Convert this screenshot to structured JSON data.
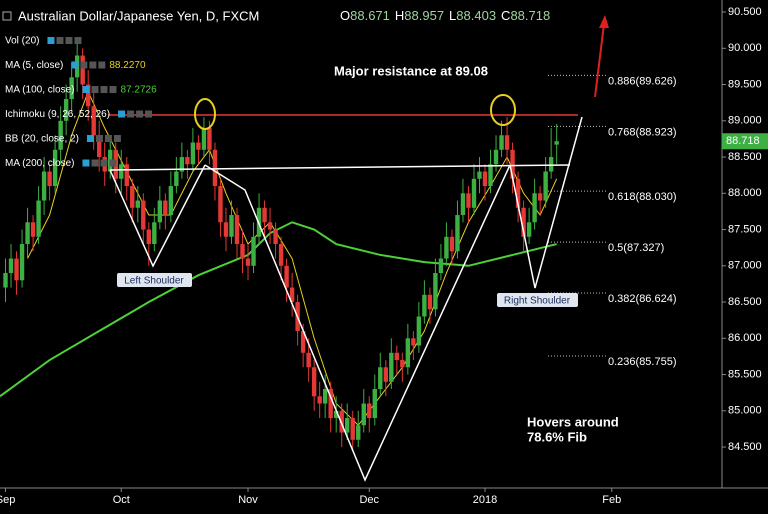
{
  "chart_data": {
    "type": "candlestick",
    "title": "Australian Dollar/Japanese Yen, D, FXCM",
    "ohlc_prefixes": [
      "O",
      "H",
      "L",
      "C"
    ],
    "indicators": [
      {
        "name": "Vol (20)"
      },
      {
        "name": "MA (5, close)",
        "value_label": "88.2270",
        "color": "#e8d21d"
      },
      {
        "name": "MA (100, close)",
        "value_label": "87.2726",
        "color": "#4cd137"
      },
      {
        "name": "Ichimoku (9, 26, 52, 26)"
      },
      {
        "name": "BB (20, close, 2)"
      },
      {
        "name": "MA (200, close)"
      }
    ],
    "series": [
      {
        "name": "AUD/JPY",
        "up_color": "#3cb043",
        "down_color": "#e53935",
        "values": [
          [
            86.7,
            87.1,
            86.5,
            86.9
          ],
          [
            86.9,
            87.3,
            86.7,
            87.1
          ],
          [
            87.1,
            87.2,
            86.6,
            86.8
          ],
          [
            86.8,
            87.5,
            86.7,
            87.3
          ],
          [
            87.3,
            87.8,
            87.1,
            87.6
          ],
          [
            87.6,
            87.7,
            87.2,
            87.4
          ],
          [
            87.4,
            88.1,
            87.3,
            87.9
          ],
          [
            87.9,
            88.5,
            87.7,
            88.3
          ],
          [
            88.3,
            88.4,
            87.9,
            88.1
          ],
          [
            88.1,
            88.8,
            88.0,
            88.6
          ],
          [
            88.6,
            89.2,
            88.4,
            89.0
          ],
          [
            89.0,
            89.5,
            88.8,
            89.3
          ],
          [
            89.3,
            89.8,
            89.1,
            89.6
          ],
          [
            89.6,
            90.1,
            89.4,
            89.9
          ],
          [
            89.9,
            90.0,
            89.3,
            89.5
          ],
          [
            89.5,
            89.7,
            89.0,
            89.2
          ],
          [
            89.2,
            89.4,
            88.6,
            88.8
          ],
          [
            88.8,
            89.0,
            88.3,
            88.5
          ],
          [
            88.5,
            88.7,
            88.1,
            88.3
          ],
          [
            88.3,
            88.8,
            88.2,
            88.6
          ],
          [
            88.6,
            88.7,
            88.0,
            88.2
          ],
          [
            88.2,
            88.6,
            88.0,
            88.4
          ],
          [
            88.4,
            88.5,
            87.9,
            88.1
          ],
          [
            88.1,
            88.2,
            87.6,
            87.8
          ],
          [
            87.8,
            88.1,
            87.6,
            87.9
          ],
          [
            87.9,
            88.0,
            87.3,
            87.5
          ],
          [
            87.5,
            87.6,
            87.0,
            87.3
          ],
          [
            87.3,
            87.8,
            87.2,
            87.6
          ],
          [
            87.6,
            88.1,
            87.5,
            87.9
          ],
          [
            87.9,
            88.0,
            87.5,
            87.7
          ],
          [
            87.7,
            88.3,
            87.6,
            88.1
          ],
          [
            88.1,
            88.5,
            88.0,
            88.3
          ],
          [
            88.3,
            88.7,
            88.2,
            88.5
          ],
          [
            88.5,
            88.6,
            88.2,
            88.4
          ],
          [
            88.4,
            88.9,
            88.3,
            88.7
          ],
          [
            88.7,
            88.8,
            88.4,
            88.6
          ],
          [
            88.6,
            89.05,
            88.5,
            88.9
          ],
          [
            88.9,
            89.0,
            88.4,
            88.6
          ],
          [
            88.6,
            88.7,
            87.9,
            88.1
          ],
          [
            88.1,
            88.2,
            87.4,
            87.6
          ],
          [
            87.6,
            87.8,
            87.2,
            87.4
          ],
          [
            87.4,
            87.9,
            87.3,
            87.7
          ],
          [
            87.7,
            87.8,
            87.1,
            87.3
          ],
          [
            87.3,
            87.5,
            86.9,
            87.1
          ],
          [
            87.1,
            87.3,
            86.8,
            87.0
          ],
          [
            87.0,
            87.6,
            86.9,
            87.4
          ],
          [
            87.4,
            88.0,
            87.3,
            87.8
          ],
          [
            87.8,
            87.9,
            87.4,
            87.6
          ],
          [
            87.6,
            87.8,
            87.3,
            87.5
          ],
          [
            87.5,
            87.6,
            87.1,
            87.3
          ],
          [
            87.3,
            87.4,
            86.8,
            87.0
          ],
          [
            87.0,
            87.1,
            86.5,
            86.7
          ],
          [
            86.7,
            86.9,
            86.3,
            86.5
          ],
          [
            86.5,
            86.6,
            85.9,
            86.1
          ],
          [
            86.1,
            86.2,
            85.6,
            85.8
          ],
          [
            85.8,
            86.0,
            85.4,
            85.6
          ],
          [
            85.6,
            85.7,
            85.0,
            85.2
          ],
          [
            85.2,
            85.4,
            84.9,
            85.1
          ],
          [
            85.1,
            85.5,
            84.9,
            85.3
          ],
          [
            85.3,
            85.4,
            84.7,
            84.9
          ],
          [
            84.9,
            85.2,
            84.7,
            85.0
          ],
          [
            85.0,
            85.1,
            84.5,
            84.7
          ],
          [
            84.7,
            85.1,
            84.6,
            84.9
          ],
          [
            84.9,
            85.0,
            84.45,
            84.6
          ],
          [
            84.6,
            85.0,
            84.5,
            84.8
          ],
          [
            84.8,
            85.3,
            84.7,
            85.1
          ],
          [
            85.1,
            85.2,
            84.7,
            84.9
          ],
          [
            84.9,
            85.5,
            84.8,
            85.3
          ],
          [
            85.3,
            85.8,
            85.2,
            85.6
          ],
          [
            85.6,
            85.7,
            85.2,
            85.4
          ],
          [
            85.4,
            86.0,
            85.3,
            85.8
          ],
          [
            85.8,
            85.9,
            85.5,
            85.7
          ],
          [
            85.7,
            85.8,
            85.4,
            85.6
          ],
          [
            85.6,
            86.2,
            85.5,
            86.0
          ],
          [
            86.0,
            86.1,
            85.7,
            85.9
          ],
          [
            85.9,
            86.5,
            85.8,
            86.3
          ],
          [
            86.3,
            86.8,
            86.2,
            86.6
          ],
          [
            86.6,
            86.7,
            86.2,
            86.4
          ],
          [
            86.4,
            87.1,
            86.3,
            86.9
          ],
          [
            86.9,
            87.3,
            86.8,
            87.1
          ],
          [
            87.1,
            87.6,
            87.0,
            87.4
          ],
          [
            87.4,
            87.5,
            87.0,
            87.2
          ],
          [
            87.2,
            87.9,
            87.1,
            87.7
          ],
          [
            87.7,
            88.2,
            87.6,
            88.0
          ],
          [
            88.0,
            88.1,
            87.6,
            87.8
          ],
          [
            87.8,
            88.4,
            87.7,
            88.2
          ],
          [
            88.2,
            88.5,
            88.0,
            88.3
          ],
          [
            88.3,
            88.4,
            87.9,
            88.1
          ],
          [
            88.1,
            88.6,
            88.0,
            88.4
          ],
          [
            88.4,
            88.8,
            88.3,
            88.6
          ],
          [
            88.6,
            89.0,
            88.5,
            88.8
          ],
          [
            88.8,
            89.05,
            88.4,
            88.6
          ],
          [
            88.6,
            88.7,
            88.0,
            88.2
          ],
          [
            88.2,
            88.3,
            87.6,
            87.8
          ],
          [
            87.8,
            87.9,
            87.2,
            87.4
          ],
          [
            87.4,
            87.8,
            87.3,
            87.6
          ],
          [
            87.6,
            88.2,
            87.5,
            88.0
          ],
          [
            88.0,
            88.1,
            87.7,
            87.9
          ],
          [
            87.9,
            88.5,
            87.8,
            88.3
          ],
          [
            88.3,
            88.9,
            88.2,
            88.5
          ],
          [
            88.671,
            88.957,
            88.403,
            88.718
          ]
        ]
      }
    ],
    "ma_lines": [
      {
        "name": "MA (100, close)",
        "color": "#4cd137",
        "x": [
          -1,
          8,
          17,
          26,
          35,
          44,
          48,
          52,
          56,
          60,
          68,
          76,
          84,
          92,
          100
        ],
        "values": [
          85.2,
          85.7,
          86.1,
          86.5,
          86.87,
          87.15,
          87.45,
          87.6,
          87.5,
          87.3,
          87.15,
          87.05,
          87.0,
          87.15,
          87.3
        ]
      },
      {
        "name": "MA (5, close)",
        "color": "#e8d21d",
        "x": [
          4,
          8,
          12,
          15,
          18,
          22,
          26,
          30,
          34,
          37,
          40,
          44,
          48,
          52,
          56,
          60,
          64,
          68,
          72,
          76,
          80,
          84,
          88,
          91,
          94,
          97,
          100
        ],
        "values": [
          87.1,
          87.7,
          88.8,
          89.4,
          88.9,
          88.3,
          87.7,
          87.7,
          88.3,
          88.6,
          88.0,
          87.3,
          87.6,
          87.1,
          86.0,
          85.1,
          84.8,
          85.2,
          85.6,
          86.1,
          86.9,
          87.6,
          88.1,
          88.5,
          88.0,
          87.7,
          88.2
        ]
      }
    ],
    "xlim": [
      -1,
      130
    ],
    "xticks": [
      {
        "value": 0,
        "label": "Sep"
      },
      {
        "value": 21,
        "label": "Oct"
      },
      {
        "value": 44,
        "label": "Nov"
      },
      {
        "value": 66,
        "label": "Dec"
      },
      {
        "value": 87,
        "label": "2018"
      },
      {
        "value": 110,
        "label": "Feb"
      }
    ],
    "ylim": [
      83.935,
      90.666
    ],
    "yticks": [
      {
        "value": 84.5,
        "label": "84.500"
      },
      {
        "value": 85,
        "label": "85.000"
      },
      {
        "value": 85.5,
        "label": "85.500"
      },
      {
        "value": 86,
        "label": "86.000"
      },
      {
        "value": 86.5,
        "label": "86.500"
      },
      {
        "value": 87,
        "label": "87.000"
      },
      {
        "value": 87.5,
        "label": "87.500"
      },
      {
        "value": 88,
        "label": "88.000"
      },
      {
        "value": 88.5,
        "label": "88.500"
      },
      {
        "value": 89,
        "label": "89.000"
      },
      {
        "value": 89.5,
        "label": "89.500"
      },
      {
        "value": 90,
        "label": "90.000"
      },
      {
        "value": 90.5,
        "label": "90.500"
      }
    ],
    "resistance": {
      "value": 89.08,
      "color": "#e53935",
      "label": "Major resistance at 89.08"
    },
    "fib_levels": [
      {
        "value": 89.626,
        "label": "0.886(89.626)"
      },
      {
        "value": 88.923,
        "label": "0.768(88.923)"
      },
      {
        "value": 88.03,
        "label": "0.618(88.030)"
      },
      {
        "value": 87.327,
        "label": "0.5(87.327)"
      },
      {
        "value": 86.624,
        "label": "0.382(86.624)"
      },
      {
        "value": 85.755,
        "label": "0.236(85.755)"
      }
    ],
    "annotations": {
      "left_shoulder": "Left Shoulder",
      "right_shoulder": "Right Shoulder",
      "hover": [
        "Hovers around",
        "78.6% Fib"
      ]
    }
  }
}
